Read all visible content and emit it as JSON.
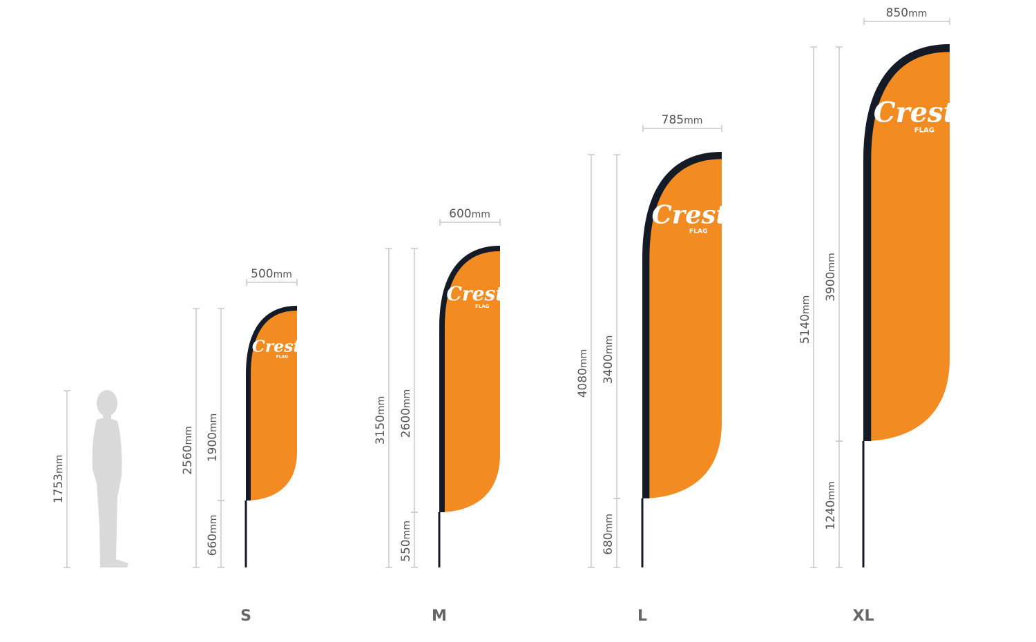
{
  "unit": "mm",
  "colors": {
    "flag": "#f28c22",
    "edge": "#141b26",
    "dimension": "#c8c8c8",
    "person": "#d9d9d9"
  },
  "person": {
    "height": "1753"
  },
  "logo": {
    "name": "Crest",
    "sub": "FLAG"
  },
  "flags": [
    {
      "size": "S",
      "width": "500",
      "total": "2560",
      "flag_height": "1900",
      "pole": "660"
    },
    {
      "size": "M",
      "width": "600",
      "total": "3150",
      "flag_height": "2600",
      "pole": "550"
    },
    {
      "size": "L",
      "width": "785",
      "total": "4080",
      "flag_height": "3400",
      "pole": "680"
    },
    {
      "size": "XL",
      "width": "850",
      "total": "5140",
      "flag_height": "3900",
      "pole": "1240"
    }
  ]
}
